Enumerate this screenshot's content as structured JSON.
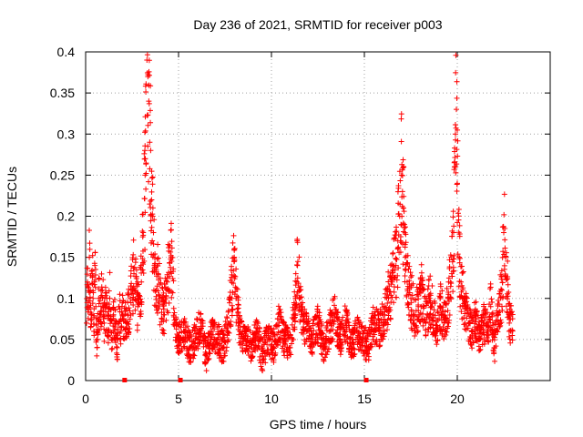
{
  "chart_data": {
    "type": "scatter",
    "title": "Day 236 of 2021, SRMTID for receiver p003",
    "xlabel": "GPS time / hours",
    "ylabel": "SRMTID / TECUs",
    "xlim": [
      0,
      25
    ],
    "ylim": [
      0,
      0.4
    ],
    "xticks": [
      0,
      5,
      10,
      15,
      20
    ],
    "xtick_labels": [
      "0",
      "5",
      "10",
      "15",
      "20"
    ],
    "yticks": [
      0,
      0.05,
      0.1,
      0.15,
      0.2,
      0.25,
      0.3,
      0.35,
      0.4
    ],
    "ytick_labels": [
      "0",
      "0.05",
      "0.1",
      "0.15",
      "0.2",
      "0.25",
      "0.3",
      "0.35",
      "0.4"
    ],
    "grid": true,
    "marker": "plus",
    "color": "#ff0000",
    "gap_markers_x": [
      2.1,
      5.1,
      15.1
    ],
    "series": [
      {
        "name": "SRMTID",
        "x": [
          0.05,
          0.1,
          0.15,
          0.2,
          0.25,
          0.3,
          0.35,
          0.4,
          0.45,
          0.5,
          0.55,
          0.6,
          0.7,
          0.8,
          0.9,
          1.0,
          1.1,
          1.2,
          1.3,
          1.4,
          1.5,
          1.6,
          1.7,
          1.8,
          1.9,
          2.0,
          2.2,
          2.4,
          2.6,
          2.8,
          3.0,
          3.1,
          3.2,
          3.3,
          3.35,
          3.4,
          3.45,
          3.5,
          3.55,
          3.6,
          3.65,
          3.7,
          3.8,
          3.9,
          4.0,
          4.2,
          4.4,
          4.6,
          4.8,
          5.0,
          5.3,
          5.6,
          5.9,
          6.2,
          6.5,
          6.8,
          7.1,
          7.4,
          7.7,
          8.0,
          8.1,
          8.3,
          8.6,
          8.9,
          9.2,
          9.5,
          9.8,
          10.1,
          10.4,
          10.7,
          11.0,
          11.3,
          11.4,
          11.6,
          11.9,
          12.2,
          12.5,
          12.8,
          13.1,
          13.4,
          13.7,
          14.0,
          14.3,
          14.6,
          14.9,
          15.2,
          15.5,
          15.8,
          16.1,
          16.3,
          16.5,
          16.7,
          16.8,
          16.9,
          17.0,
          17.05,
          17.1,
          17.15,
          17.2,
          17.3,
          17.5,
          17.7,
          17.9,
          18.1,
          18.3,
          18.5,
          18.7,
          18.9,
          19.1,
          19.3,
          19.5,
          19.7,
          19.8,
          19.85,
          19.9,
          19.95,
          20.0,
          20.1,
          20.2,
          20.4,
          20.6,
          20.8,
          21.0,
          21.2,
          21.4,
          21.6,
          21.8,
          22.0,
          22.2,
          22.4,
          22.5,
          22.6,
          22.8
        ],
        "y": [
          0.07,
          0.12,
          0.09,
          0.15,
          0.11,
          0.08,
          0.13,
          0.1,
          0.06,
          0.14,
          0.09,
          0.03,
          0.1,
          0.08,
          0.11,
          0.07,
          0.09,
          0.06,
          0.1,
          0.05,
          0.08,
          0.07,
          0.04,
          0.09,
          0.06,
          0.08,
          0.07,
          0.1,
          0.13,
          0.09,
          0.12,
          0.18,
          0.25,
          0.39,
          0.37,
          0.34,
          0.29,
          0.28,
          0.22,
          0.2,
          0.18,
          0.14,
          0.11,
          0.13,
          0.1,
          0.08,
          0.12,
          0.15,
          0.07,
          0.05,
          0.06,
          0.04,
          0.05,
          0.07,
          0.03,
          0.06,
          0.05,
          0.04,
          0.07,
          0.15,
          0.1,
          0.06,
          0.05,
          0.04,
          0.06,
          0.03,
          0.05,
          0.04,
          0.07,
          0.05,
          0.04,
          0.1,
          0.14,
          0.08,
          0.06,
          0.05,
          0.07,
          0.04,
          0.06,
          0.08,
          0.05,
          0.07,
          0.04,
          0.06,
          0.05,
          0.04,
          0.07,
          0.06,
          0.08,
          0.1,
          0.12,
          0.14,
          0.17,
          0.2,
          0.25,
          0.23,
          0.21,
          0.19,
          0.15,
          0.12,
          0.1,
          0.08,
          0.09,
          0.11,
          0.07,
          0.1,
          0.08,
          0.06,
          0.09,
          0.07,
          0.1,
          0.13,
          0.18,
          0.26,
          0.3,
          0.33,
          0.24,
          0.15,
          0.12,
          0.09,
          0.07,
          0.06,
          0.08,
          0.05,
          0.07,
          0.06,
          0.09,
          0.04,
          0.08,
          0.11,
          0.18,
          0.15,
          0.07
        ]
      }
    ]
  }
}
